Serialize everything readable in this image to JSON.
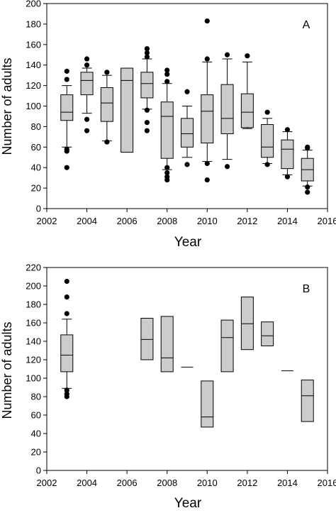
{
  "chart_data": [
    {
      "type": "box",
      "panel_label": "A",
      "xlabel": "Year",
      "ylabel": "Number of adults",
      "xlim": [
        2002,
        2016
      ],
      "ylim": [
        0,
        200
      ],
      "xticks": [
        2002,
        2004,
        2006,
        2008,
        2010,
        2012,
        2014,
        2016
      ],
      "yticks": [
        0,
        20,
        40,
        60,
        80,
        100,
        120,
        140,
        160,
        180,
        200
      ],
      "grid": false,
      "box_color": "#cccccc",
      "boxes": [
        {
          "x": 2003,
          "q1": 86,
          "median": 94,
          "q3": 111,
          "whisker_low": 60,
          "whisker_high": 120,
          "outliers": [
            40,
            56,
            58,
            126,
            134
          ]
        },
        {
          "x": 2004,
          "q1": 111,
          "median": 125,
          "q3": 133,
          "whisker_low": 93,
          "whisker_high": 137,
          "outliers": [
            76,
            87,
            140,
            146
          ]
        },
        {
          "x": 2005,
          "q1": 85,
          "median": 103,
          "q3": 118,
          "whisker_low": 66,
          "whisker_high": 130,
          "outliers": [
            65,
            133
          ]
        },
        {
          "x": 2006,
          "q1": 55,
          "median": 125,
          "q3": 137,
          "whisker_low": null,
          "whisker_high": null,
          "outliers": []
        },
        {
          "x": 2007,
          "q1": 108,
          "median": 122,
          "q3": 133,
          "whisker_low": 97,
          "whisker_high": 146,
          "outliers": [
            76,
            84,
            96,
            148,
            152,
            156
          ]
        },
        {
          "x": 2008,
          "q1": 49,
          "median": 90,
          "q3": 104,
          "whisker_low": 38,
          "whisker_high": 122,
          "outliers": [
            28,
            31,
            35,
            40,
            124,
            131,
            135
          ]
        },
        {
          "x": 2009,
          "q1": 60,
          "median": 73,
          "q3": 88,
          "whisker_low": 50,
          "whisker_high": 100,
          "outliers": [
            43,
            114
          ]
        },
        {
          "x": 2010,
          "q1": 64,
          "median": 95,
          "q3": 111,
          "whisker_low": 46,
          "whisker_high": 143,
          "outliers": [
            28,
            44,
            146,
            183
          ]
        },
        {
          "x": 2011,
          "q1": 73,
          "median": 88,
          "q3": 121,
          "whisker_low": 48,
          "whisker_high": 146,
          "outliers": [
            41,
            150
          ]
        },
        {
          "x": 2012,
          "q1": 79,
          "median": 94,
          "q3": 112,
          "whisker_low": 78,
          "whisker_high": 143,
          "outliers": [
            149
          ]
        },
        {
          "x": 2013,
          "q1": 50,
          "median": 60,
          "q3": 82,
          "whisker_low": 44,
          "whisker_high": 88,
          "outliers": [
            43,
            94
          ]
        },
        {
          "x": 2014,
          "q1": 39,
          "median": 58,
          "q3": 67,
          "whisker_low": 33,
          "whisker_high": 75,
          "outliers": [
            31,
            77
          ]
        },
        {
          "x": 2015,
          "q1": 27,
          "median": 38,
          "q3": 49,
          "whisker_low": 22,
          "whisker_high": 57,
          "outliers": [
            16,
            21,
            59,
            60
          ]
        }
      ]
    },
    {
      "type": "box",
      "panel_label": "B",
      "xlabel": "Year",
      "ylabel": "Number of adults",
      "xlim": [
        2002,
        2016
      ],
      "ylim": [
        0,
        220
      ],
      "xticks": [
        2002,
        2004,
        2006,
        2008,
        2010,
        2012,
        2014,
        2016
      ],
      "yticks": [
        0,
        20,
        40,
        60,
        80,
        100,
        120,
        140,
        160,
        180,
        200,
        220
      ],
      "grid": false,
      "box_color": "#cccccc",
      "boxes": [
        {
          "x": 2003,
          "q1": 107,
          "median": 125,
          "q3": 147,
          "whisker_low": 89,
          "whisker_high": 164,
          "outliers": [
            80,
            83,
            87,
            170,
            188,
            205
          ]
        },
        {
          "x": 2007,
          "q1": 120,
          "median": 142,
          "q3": 165,
          "whisker_low": null,
          "whisker_high": null,
          "outliers": []
        },
        {
          "x": 2008,
          "q1": 107,
          "median": 122,
          "q3": 167,
          "whisker_low": null,
          "whisker_high": null,
          "outliers": []
        },
        {
          "x": 2009,
          "q1": 112,
          "median": 112,
          "q3": 112,
          "whisker_low": null,
          "whisker_high": null,
          "outliers": []
        },
        {
          "x": 2010,
          "q1": 47,
          "median": 58,
          "q3": 97,
          "whisker_low": null,
          "whisker_high": null,
          "outliers": []
        },
        {
          "x": 2011,
          "q1": 107,
          "median": 144,
          "q3": 163,
          "whisker_low": null,
          "whisker_high": null,
          "outliers": []
        },
        {
          "x": 2012,
          "q1": 131,
          "median": 159,
          "q3": 188,
          "whisker_low": null,
          "whisker_high": null,
          "outliers": []
        },
        {
          "x": 2013,
          "q1": 135,
          "median": 146,
          "q3": 161,
          "whisker_low": null,
          "whisker_high": null,
          "outliers": []
        },
        {
          "x": 2014,
          "q1": 108,
          "median": 108,
          "q3": 108,
          "whisker_low": null,
          "whisker_high": null,
          "outliers": []
        },
        {
          "x": 2015,
          "q1": 53,
          "median": 81,
          "q3": 98,
          "whisker_low": null,
          "whisker_high": null,
          "outliers": []
        }
      ]
    }
  ]
}
